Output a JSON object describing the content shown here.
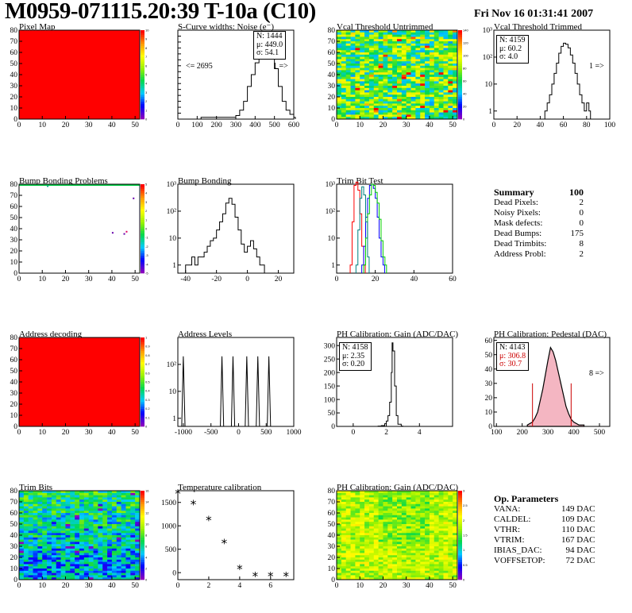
{
  "header": {
    "title": "M0959-071115.20:39 T-10a (C10)",
    "date": "Fri Nov 16 01:31:41 2007"
  },
  "chart_data": [
    {
      "id": "pixel-map",
      "type": "heatmap",
      "title": "Pixel Map",
      "xlim": [
        0,
        52
      ],
      "ylim": [
        0,
        80
      ],
      "x_ticks": [
        "0",
        "10",
        "20",
        "30",
        "40",
        "50"
      ],
      "y_ticks": [
        "0",
        "10",
        "20",
        "30",
        "40",
        "50",
        "60",
        "70",
        "80"
      ],
      "zlim": [
        0,
        10
      ],
      "z_ticks": [
        "0",
        "1",
        "2",
        "3",
        "4",
        "5",
        "6",
        "7",
        "8",
        "9",
        "10"
      ],
      "fill": "uniform",
      "value": 10
    },
    {
      "id": "scurve-noise",
      "type": "line",
      "title": "S-Curve widths: Noise (e⁻)",
      "xlim": [
        0,
        600
      ],
      "ylim": [
        0,
        150
      ],
      "x_ticks": [
        "0",
        "100",
        "200",
        "300",
        "400",
        "500",
        "600"
      ],
      "stats": [
        "N: 1444",
        "μ: 449.0",
        "σ: 54.1"
      ],
      "underflow": "<= 2695",
      "overflow": "1 =>",
      "x": [
        120,
        300,
        320,
        340,
        360,
        380,
        400,
        420,
        440,
        460,
        480,
        500,
        520,
        540,
        560,
        580,
        600
      ],
      "values": [
        3,
        6,
        15,
        30,
        55,
        75,
        95,
        120,
        135,
        125,
        110,
        85,
        55,
        30,
        15,
        8,
        3
      ]
    },
    {
      "id": "vcal-untrimmed",
      "type": "heatmap",
      "title": "Vcal Threshold Untrimmed",
      "xlim": [
        0,
        52
      ],
      "ylim": [
        0,
        80
      ],
      "x_ticks": [
        "0",
        "10",
        "20",
        "30",
        "40",
        "50"
      ],
      "y_ticks": [
        "0",
        "10",
        "20",
        "30",
        "40",
        "50",
        "60",
        "70",
        "80"
      ],
      "zlim": [
        0,
        140
      ],
      "z_ticks": [
        "0",
        "20",
        "40",
        "60",
        "80",
        "100",
        "120",
        "140"
      ],
      "fill": "noisy-warm"
    },
    {
      "id": "vcal-trimmed",
      "type": "line",
      "title": "Vcal Threshold Trimmed",
      "log_y": true,
      "xlim": [
        0,
        100
      ],
      "ylim": [
        0.5,
        1000
      ],
      "x_ticks": [
        "0",
        "20",
        "40",
        "60",
        "80",
        "100"
      ],
      "y_ticks": [
        "1",
        "10",
        "10²",
        "10³"
      ],
      "stats": [
        "N: 4159",
        "μ: 60.2",
        "σ:  4.0"
      ],
      "overflow": "1 =>",
      "x": [
        44,
        46,
        48,
        50,
        52,
        54,
        56,
        58,
        60,
        62,
        64,
        66,
        68,
        70,
        72,
        74,
        76,
        78,
        80,
        82
      ],
      "values": [
        1,
        2,
        4,
        10,
        25,
        60,
        140,
        250,
        330,
        300,
        220,
        120,
        60,
        25,
        10,
        4,
        2,
        1,
        2,
        1
      ]
    },
    {
      "id": "bump-problems",
      "type": "heatmap",
      "title": "Bump Bonding Problems",
      "xlim": [
        0,
        52
      ],
      "ylim": [
        0,
        80
      ],
      "x_ticks": [
        "0",
        "10",
        "20",
        "30",
        "40",
        "50"
      ],
      "y_ticks": [
        "0",
        "10",
        "20",
        "30",
        "40",
        "50",
        "60",
        "70",
        "80"
      ],
      "zlim": [
        -5,
        5
      ],
      "z_ticks": [
        "-5",
        "-4",
        "-3",
        "-2",
        "-1",
        "0",
        "1",
        "2",
        "3",
        "4",
        "5"
      ],
      "fill": "sparse"
    },
    {
      "id": "bump-bonding",
      "type": "line",
      "title": "Bump Bonding",
      "log_y": true,
      "xlim": [
        -45,
        30
      ],
      "ylim": [
        0.5,
        1000
      ],
      "x_ticks": [
        "-40",
        "-20",
        "0",
        "20"
      ],
      "y_ticks": [
        "1",
        "10",
        "10²",
        "10³"
      ],
      "x": [
        -40,
        -38,
        -36,
        -34,
        -32,
        -30,
        -28,
        -26,
        -24,
        -22,
        -20,
        -18,
        -16,
        -14,
        -12,
        -10,
        -8,
        -6,
        -4,
        -2,
        0,
        2,
        4,
        6,
        8,
        10
      ],
      "values": [
        1,
        1,
        2,
        1,
        2,
        2,
        3,
        5,
        8,
        10,
        20,
        40,
        80,
        200,
        300,
        180,
        60,
        20,
        6,
        3,
        5,
        8,
        4,
        2,
        1,
        1
      ]
    },
    {
      "id": "trim-bit-test",
      "type": "line",
      "title": "Trim Bit Test",
      "log_y": true,
      "xlim": [
        0,
        60
      ],
      "ylim": [
        0.5,
        1000
      ],
      "x_ticks": [
        "0",
        "20",
        "40",
        "60"
      ],
      "y_ticks": [
        "1",
        "10",
        "10²",
        "10³"
      ],
      "series": [
        {
          "color": "#ff0000",
          "x": [
            7,
            8,
            9,
            10,
            11,
            12,
            13,
            14
          ],
          "values": [
            1,
            40,
            900,
            1200,
            600,
            80,
            5,
            1
          ]
        },
        {
          "color": "#0000ff",
          "x": [
            13,
            14,
            15,
            16,
            17,
            18,
            19,
            20,
            21,
            22,
            23,
            24
          ],
          "values": [
            1,
            5,
            60,
            300,
            900,
            1000,
            700,
            300,
            60,
            10,
            2,
            1
          ]
        },
        {
          "color": "#00cc00",
          "x": [
            14,
            15,
            16,
            17,
            18,
            19,
            20,
            21,
            22,
            23,
            24,
            25
          ],
          "values": [
            1,
            10,
            80,
            400,
            1000,
            900,
            500,
            200,
            50,
            8,
            2,
            1
          ]
        },
        {
          "color": "#008080",
          "x": [
            10,
            11,
            12,
            13,
            14,
            15,
            16
          ],
          "values": [
            1,
            20,
            300,
            800,
            400,
            40,
            2
          ]
        }
      ]
    },
    {
      "id": "address-decoding",
      "type": "heatmap",
      "title": "Address decoding",
      "xlim": [
        0,
        52
      ],
      "ylim": [
        0,
        80
      ],
      "x_ticks": [
        "0",
        "10",
        "20",
        "30",
        "40",
        "50"
      ],
      "y_ticks": [
        "0",
        "10",
        "20",
        "30",
        "40",
        "50",
        "60",
        "70",
        "80"
      ],
      "zlim": [
        0,
        1
      ],
      "z_ticks": [
        "0",
        "0.1",
        "0.2",
        "0.3",
        "0.4",
        "0.5",
        "0.6",
        "0.7",
        "0.8",
        "0.9",
        "1"
      ],
      "fill": "uniform",
      "value": 1
    },
    {
      "id": "address-levels",
      "type": "line",
      "title": "Address Levels",
      "log_y": true,
      "xlim": [
        -1100,
        1000
      ],
      "ylim": [
        0.5,
        1000
      ],
      "x_ticks": [
        "-1000",
        "-500",
        "0",
        "500",
        "1000"
      ],
      "y_ticks": [
        "1",
        "10",
        "10²"
      ],
      "peaks": [
        -1000,
        -300,
        -100,
        150,
        350,
        550
      ],
      "peak_height": 200
    },
    {
      "id": "ph-gain",
      "type": "line",
      "title": "PH Calibration: Gain (ADC/DAC)",
      "xlim": [
        -1,
        6
      ],
      "ylim": [
        0,
        330
      ],
      "x_ticks": [
        "0",
        "2",
        "4"
      ],
      "y_ticks": [
        "0",
        "50",
        "100",
        "150",
        "200",
        "250",
        "300"
      ],
      "stats": [
        "N: 4158",
        "μ: 2.35",
        "σ: 0.20"
      ],
      "x": [
        1.5,
        1.7,
        1.9,
        2.0,
        2.1,
        2.2,
        2.3,
        2.35,
        2.4,
        2.5,
        2.6,
        2.7,
        2.9
      ],
      "values": [
        1,
        3,
        10,
        20,
        40,
        90,
        200,
        310,
        280,
        150,
        40,
        8,
        1
      ]
    },
    {
      "id": "ph-pedestal",
      "type": "line",
      "title": "PH Calibration: Pedestal (DAC)",
      "xlim": [
        90,
        540
      ],
      "ylim": [
        0,
        62
      ],
      "x_ticks": [
        "100",
        "200",
        "300",
        "400",
        "500"
      ],
      "y_ticks": [
        "0",
        "10",
        "20",
        "30",
        "40",
        "50",
        "60"
      ],
      "stats": [
        "N: 4143",
        "μ: 306.8",
        "σ: 30.7"
      ],
      "overflow": "8 =>",
      "x": [
        220,
        240,
        250,
        260,
        270,
        280,
        290,
        300,
        310,
        320,
        330,
        340,
        350,
        360,
        370,
        380,
        390,
        400,
        420,
        440
      ],
      "values": [
        1,
        3,
        6,
        10,
        18,
        26,
        36,
        46,
        55,
        52,
        46,
        38,
        30,
        22,
        14,
        9,
        5,
        3,
        1,
        1
      ]
    },
    {
      "id": "trim-bits",
      "type": "heatmap",
      "title": "Trim Bits",
      "xlim": [
        0,
        52
      ],
      "ylim": [
        0,
        80
      ],
      "x_ticks": [
        "0",
        "10",
        "20",
        "30",
        "40",
        "50"
      ],
      "y_ticks": [
        "0",
        "10",
        "20",
        "30",
        "40",
        "50",
        "60",
        "70",
        "80"
      ],
      "zlim": [
        0,
        16
      ],
      "z_ticks": [
        "0",
        "2",
        "4",
        "6",
        "8",
        "10",
        "12",
        "14",
        "16"
      ],
      "fill": "noisy-cool"
    },
    {
      "id": "temperature-calibration",
      "type": "scatter",
      "title": "Temperature calibration",
      "xlim": [
        0,
        7.5
      ],
      "ylim": [
        -150,
        1750
      ],
      "x_ticks": [
        "0",
        "2",
        "4",
        "6"
      ],
      "y_ticks": [
        "0",
        "500",
        "1000",
        "1500"
      ],
      "x": [
        0,
        1,
        2,
        3,
        4,
        5,
        6,
        7
      ],
      "values": [
        1680,
        1450,
        1110,
        620,
        70,
        -80,
        -80,
        -80
      ]
    },
    {
      "id": "ph-gain-map",
      "type": "heatmap",
      "title": "PH Calibration: Gain (ADC/DAC)",
      "xlim": [
        0,
        52
      ],
      "ylim": [
        0,
        80
      ],
      "x_ticks": [
        "0",
        "10",
        "20",
        "30",
        "40",
        "50"
      ],
      "y_ticks": [
        "0",
        "10",
        "20",
        "30",
        "40",
        "50",
        "60",
        "70",
        "80"
      ],
      "zlim": [
        0,
        3
      ],
      "z_ticks": [
        "0",
        "0.5",
        "1",
        "1.5",
        "2",
        "2.5",
        "3"
      ],
      "fill": "noisy-orange"
    }
  ],
  "summary": {
    "title": "Summary",
    "grade": "100",
    "rows": [
      {
        "label": "Dead Pixels:",
        "value": "2"
      },
      {
        "label": "Noisy Pixels:",
        "value": "0"
      },
      {
        "label": "Mask defects:",
        "value": "0"
      },
      {
        "label": "Dead Bumps:",
        "value": "175"
      },
      {
        "label": "Dead Trimbits:",
        "value": "8"
      },
      {
        "label": "Address Probl:",
        "value": "2"
      }
    ]
  },
  "op_params": {
    "title": "Op. Parameters",
    "rows": [
      {
        "label": "VANA:",
        "value": "149 DAC"
      },
      {
        "label": "CALDEL:",
        "value": "109 DAC"
      },
      {
        "label": "VTHR:",
        "value": "110 DAC"
      },
      {
        "label": "VTRIM:",
        "value": "167 DAC"
      },
      {
        "label": "IBIAS_DAC:",
        "value": "94 DAC"
      },
      {
        "label": "VOFFSETOP:",
        "value": "72 DAC"
      }
    ]
  }
}
